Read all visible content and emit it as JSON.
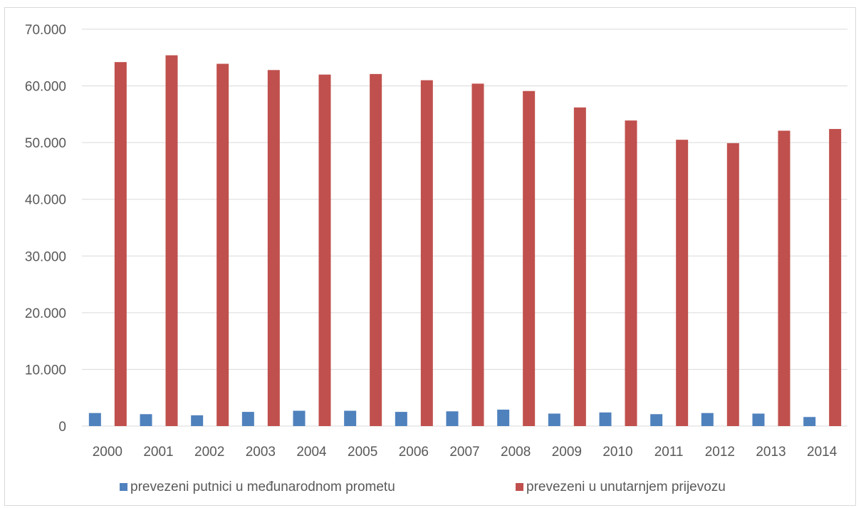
{
  "chart_data": {
    "type": "bar",
    "categories": [
      "2000",
      "2001",
      "2002",
      "2003",
      "2004",
      "2005",
      "2006",
      "2007",
      "2008",
      "2009",
      "2010",
      "2011",
      "2012",
      "2013",
      "2014"
    ],
    "series": [
      {
        "name": "prevezeni putnici u međunarodnom prometu",
        "color": "#4f81bd",
        "values": [
          2300,
          2100,
          1900,
          2500,
          2700,
          2700,
          2500,
          2600,
          2900,
          2200,
          2400,
          2100,
          2300,
          2200,
          1600
        ]
      },
      {
        "name": "prevezeni u unutarnjem prijevozu",
        "color": "#c0504d",
        "values": [
          64200,
          65400,
          63900,
          62800,
          62000,
          62100,
          61000,
          60400,
          59100,
          56200,
          53900,
          50500,
          49900,
          52100,
          52400
        ]
      }
    ],
    "y_ticks": [
      "0",
      "10.000",
      "20.000",
      "30.000",
      "40.000",
      "50.000",
      "60.000",
      "70.000"
    ],
    "ylim": [
      0,
      70000
    ],
    "grid": true,
    "legend_position": "bottom",
    "title": "",
    "xlabel": "",
    "ylabel": ""
  }
}
